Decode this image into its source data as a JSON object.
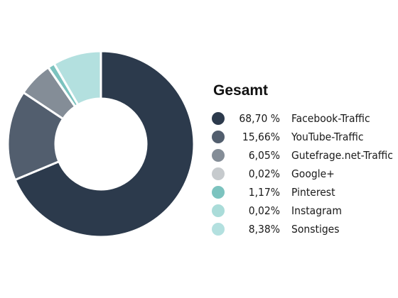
{
  "chart_data": {
    "type": "pie",
    "title": "Gesamt",
    "slices": [
      {
        "label": "Facebook-Traffic",
        "value": 68.7,
        "display": "68,70 %",
        "color": "#2c3a4c"
      },
      {
        "label": "YouTube-Traffic",
        "value": 15.66,
        "display": "15,66%",
        "color": "#525e6e"
      },
      {
        "label": "Gutefrage.net-Traffic",
        "value": 6.05,
        "display": "6,05%",
        "color": "#848d97"
      },
      {
        "label": "Google+",
        "value": 0.02,
        "display": "0,02%",
        "color": "#c6cacd"
      },
      {
        "label": "Pinterest",
        "value": 1.17,
        "display": "1,17%",
        "color": "#7cc3bf"
      },
      {
        "label": "Instagram",
        "value": 0.02,
        "display": "0,02%",
        "color": "#aadcd9"
      },
      {
        "label": "Sonstiges",
        "value": 8.38,
        "display": "8,38%",
        "color": "#b3e0df"
      }
    ],
    "legend_position": "right",
    "donut": true
  }
}
